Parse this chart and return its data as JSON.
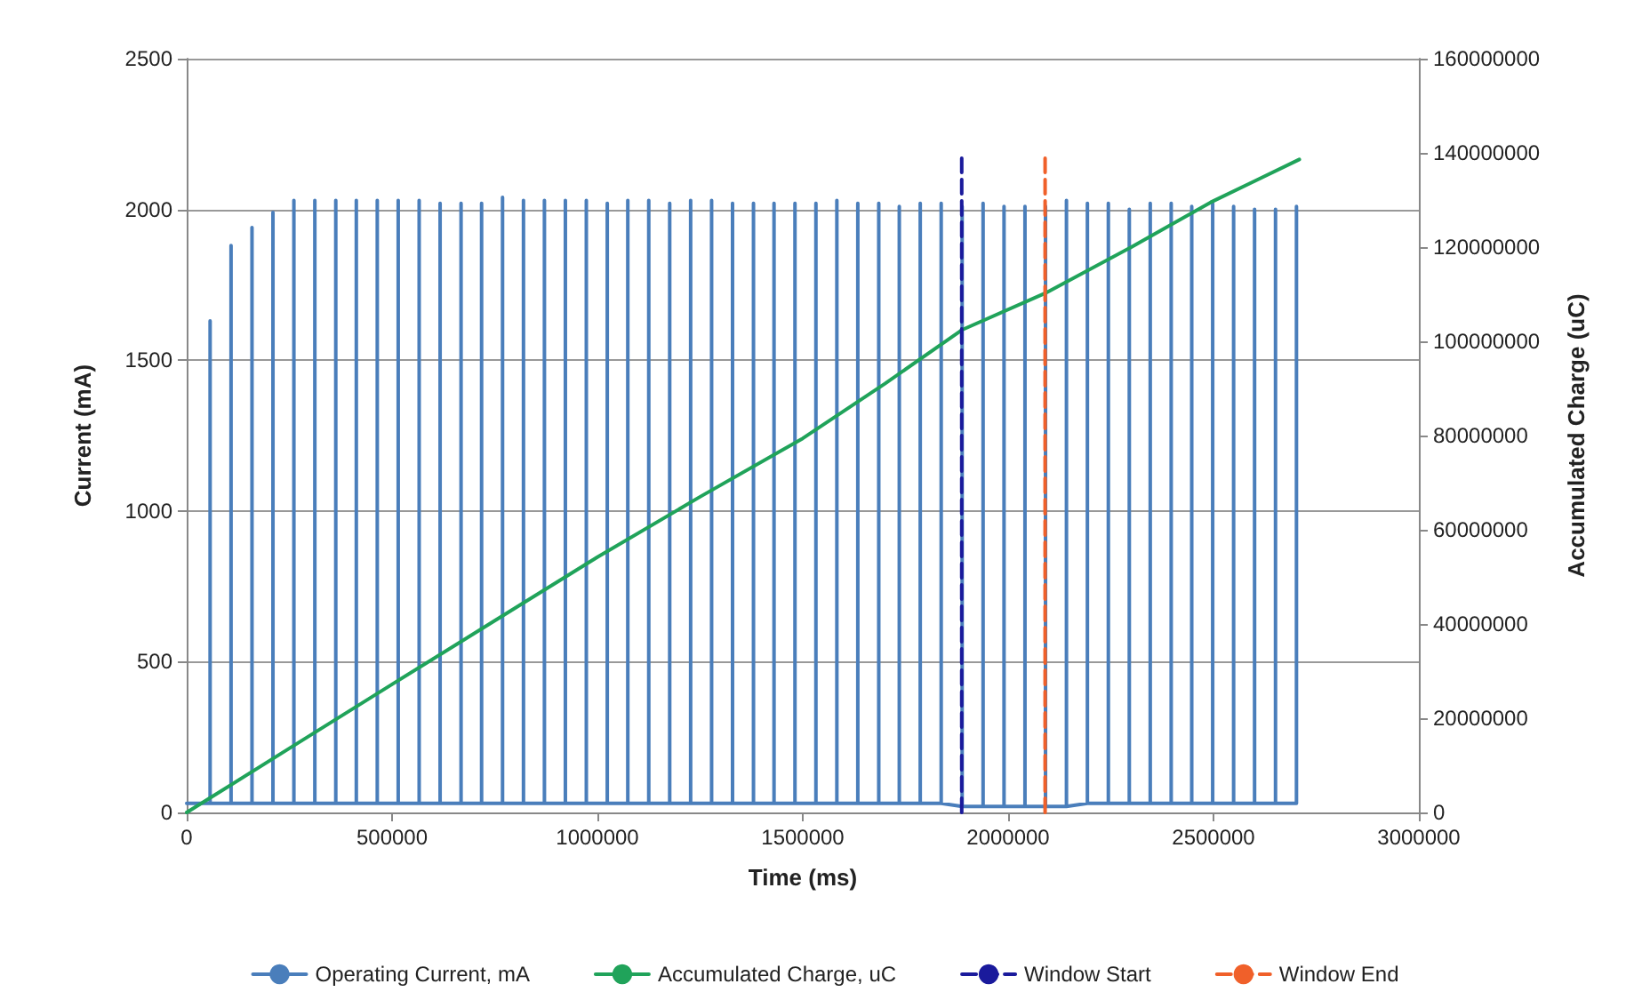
{
  "chart_data": {
    "type": "line",
    "xlabel": "Time (ms)",
    "ylabel": "Current (mA)",
    "y2label": "Accumulated Charge (uC)",
    "xlim": [
      0,
      3000000
    ],
    "xticks": [
      0,
      500000,
      1000000,
      1500000,
      2000000,
      2500000,
      3000000
    ],
    "ylim": [
      0,
      2500
    ],
    "yticks": [
      0,
      500,
      1000,
      1500,
      2000,
      2500
    ],
    "y2lim": [
      0,
      160000000
    ],
    "y2ticks": [
      0,
      20000000,
      40000000,
      60000000,
      80000000,
      100000000,
      120000000,
      140000000,
      160000000
    ],
    "grid": "y",
    "legend": "bottom",
    "series": [
      {
        "name": "Operating Current, mA",
        "color": "#4a7ebb",
        "line_style": "solid",
        "x": [
          0,
          57000,
          57000,
          57000,
          108000,
          108000,
          108000,
          159000,
          159000,
          159000,
          210000,
          210000,
          210000,
          261000,
          261000,
          261000,
          312000,
          312000,
          312000,
          363000,
          363000,
          363000,
          413000,
          413000,
          413000,
          464000,
          464000,
          464000,
          515000,
          515000,
          515000,
          566000,
          566000,
          566000,
          617000,
          617000,
          617000,
          668000,
          668000,
          668000,
          718000,
          718000,
          718000,
          769000,
          769000,
          769000,
          820000,
          820000,
          820000,
          871000,
          871000,
          871000,
          922000,
          922000,
          922000,
          973000,
          973000,
          973000,
          1024000,
          1024000,
          1024000,
          1074000,
          1074000,
          1074000,
          1125000,
          1125000,
          1125000,
          1176000,
          1176000,
          1176000,
          1227000,
          1227000,
          1227000,
          1278000,
          1278000,
          1278000,
          1329000,
          1329000,
          1329000,
          1380000,
          1380000,
          1380000,
          1430000,
          1430000,
          1430000,
          1481000,
          1481000,
          1481000,
          1532000,
          1532000,
          1532000,
          1583000,
          1583000,
          1583000,
          1634000,
          1634000,
          1634000,
          1685000,
          1685000,
          1685000,
          1735000,
          1735000,
          1735000,
          1786000,
          1786000,
          1786000,
          1837000,
          1837000,
          1837000,
          1888000,
          1888000,
          1888000,
          1939000,
          1939000,
          1939000,
          1990000,
          1990000,
          1990000,
          2041000,
          2041000,
          2041000,
          2091000,
          2091000,
          2091000,
          2142000,
          2142000,
          2142000,
          2193000,
          2193000,
          2193000,
          2244000,
          2244000,
          2244000,
          2295000,
          2295000,
          2295000,
          2346000,
          2346000,
          2346000,
          2397000,
          2397000,
          2397000,
          2447000,
          2447000,
          2447000,
          2498000,
          2498000,
          2498000,
          2549000,
          2549000,
          2549000,
          2600000,
          2600000,
          2600000,
          2651000,
          2651000,
          2651000,
          2702000,
          2702000,
          2702000
        ],
        "values": [
          30,
          30,
          1630,
          30,
          30,
          1880,
          30,
          30,
          1940,
          30,
          30,
          1990,
          30,
          30,
          2030,
          30,
          30,
          2030,
          30,
          30,
          2030,
          30,
          30,
          2030,
          30,
          30,
          2030,
          30,
          30,
          2030,
          30,
          30,
          2030,
          30,
          30,
          2020,
          30,
          30,
          2020,
          30,
          30,
          2020,
          30,
          30,
          2040,
          30,
          30,
          2030,
          30,
          30,
          2030,
          30,
          30,
          2030,
          30,
          30,
          2030,
          30,
          30,
          2020,
          30,
          30,
          2030,
          30,
          30,
          2030,
          30,
          30,
          2020,
          30,
          30,
          2030,
          30,
          30,
          2030,
          30,
          30,
          2020,
          30,
          30,
          2020,
          30,
          30,
          2020,
          30,
          30,
          2020,
          30,
          30,
          2020,
          30,
          30,
          2030,
          30,
          30,
          2020,
          30,
          30,
          2020,
          30,
          30,
          2010,
          30,
          30,
          2020,
          30,
          30,
          2020,
          30,
          20,
          2010,
          20,
          20,
          2020,
          20,
          20,
          2010,
          20,
          20,
          2010,
          20,
          20,
          2010,
          20,
          20,
          2030,
          20,
          30,
          2020,
          30,
          30,
          2020,
          30,
          30,
          2000,
          30,
          30,
          2020,
          30,
          30,
          2020,
          30,
          30,
          2010,
          30,
          30,
          2020,
          30,
          30,
          2010,
          30,
          30,
          2000,
          30,
          30,
          2000,
          30,
          30,
          2010,
          30
        ]
      },
      {
        "name": "Accumulated Charge, uC",
        "color": "#20a35a",
        "line_style": "solid",
        "axis": "y2",
        "x": [
          0,
          250000,
          500000,
          750000,
          1000000,
          1250000,
          1500000,
          1700000,
          1887000,
          2090000,
          2300000,
          2493000,
          2600000,
          2709000
        ],
        "values": [
          0,
          13600000,
          27200000,
          40700000,
          54200000,
          67000000,
          79400000,
          91000000,
          102400000,
          110200000,
          120000000,
          129500000,
          134000000,
          138600000
        ]
      },
      {
        "name": "Window Start",
        "color": "#1a1a9c",
        "line_style": "dashed",
        "x": [
          1887000,
          1887000
        ],
        "values": [
          0,
          2170
        ]
      },
      {
        "name": "Window End",
        "color": "#f0602a",
        "line_style": "dashed",
        "x": [
          2090000,
          2090000
        ],
        "values": [
          0,
          2170
        ]
      }
    ]
  }
}
